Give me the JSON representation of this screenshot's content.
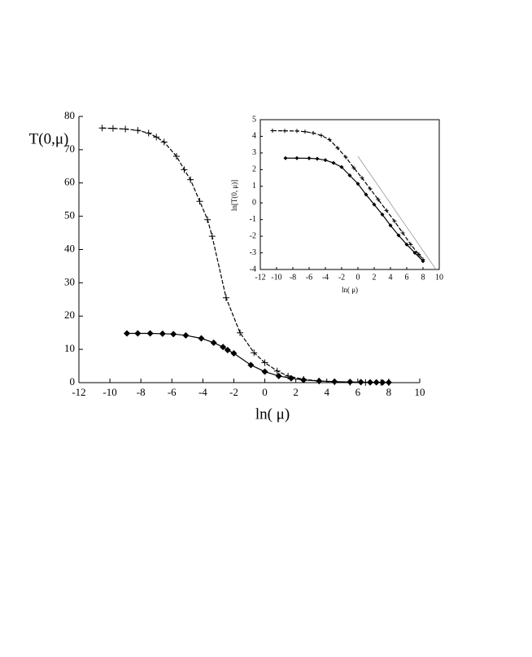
{
  "chart_data": [
    {
      "type": "line",
      "xlabel": "ln( μ)",
      "ylabel": "T(0,μ)",
      "frame": false,
      "xlim": [
        -12,
        10
      ],
      "xticks": [
        -12,
        -10,
        -8,
        -6,
        -4,
        -2,
        0,
        2,
        4,
        6,
        8,
        10
      ],
      "ylim": [
        0,
        80
      ],
      "yticks": [
        0,
        10,
        20,
        30,
        40,
        50,
        60,
        70,
        80
      ],
      "series": [
        {
          "color": "#000000",
          "marker": "plus",
          "dash": true,
          "x": [
            -10.5,
            -9.8,
            -9,
            -8.2,
            -7.5,
            -7,
            -6.5,
            -5.7,
            -5.2,
            -4.8,
            -4.2,
            -3.7,
            -3.4,
            -2.5,
            -1.6,
            -0.7,
            0,
            0.8,
            1.5,
            2.5,
            3.5,
            4.5,
            5.5,
            6.5,
            7.5,
            8
          ],
          "values": [
            76.5,
            76.4,
            76.2,
            75.8,
            75.0,
            73.8,
            72.3,
            68,
            64,
            61,
            54.5,
            49,
            44,
            25.5,
            15,
            9,
            6,
            3.5,
            2,
            1,
            0.5,
            0.2,
            0.1,
            0.05,
            0.02,
            0.01
          ]
        },
        {
          "color": "#000000",
          "marker": "diamond",
          "dash": false,
          "x": [
            -8.9,
            -8.2,
            -7.4,
            -6.6,
            -5.9,
            -5.1,
            -4.1,
            -3.3,
            -2.7,
            -2.4,
            -2,
            -0.9,
            0,
            0.9,
            1.7,
            2.5,
            3.5,
            4.5,
            5.5,
            6.2,
            6.8,
            7.2,
            7.6,
            8
          ],
          "values": [
            14.8,
            14.8,
            14.8,
            14.7,
            14.6,
            14.2,
            13.3,
            12,
            10.7,
            9.8,
            8.8,
            5.3,
            3.3,
            2,
            1.3,
            0.8,
            0.5,
            0.3,
            0.2,
            0.15,
            0.1,
            0.08,
            0.06,
            0.05
          ]
        }
      ]
    },
    {
      "type": "line",
      "xlabel": "ln( μ)",
      "ylabel": "ln[T(0, μ)]",
      "frame": true,
      "xlim": [
        -12,
        10
      ],
      "xticks": [
        -12,
        -10,
        -8,
        -6,
        -4,
        -2,
        0,
        2,
        4,
        6,
        8,
        10
      ],
      "ylim": [
        -4,
        5
      ],
      "yticks": [
        -4,
        -3,
        -2,
        -1,
        0,
        1,
        2,
        3,
        4,
        5
      ],
      "series": [
        {
          "color": "#000000",
          "marker": "plus",
          "dash": true,
          "x": [
            -10.5,
            -9,
            -7.5,
            -6.5,
            -5.5,
            -4.5,
            -3.5,
            -2.5,
            -1.5,
            -0.5,
            0.5,
            1.5,
            2.5,
            3.5,
            4.5,
            5.5,
            6.5,
            7.5,
            8
          ],
          "values": [
            4.34,
            4.33,
            4.32,
            4.28,
            4.2,
            4.05,
            3.8,
            3.3,
            2.75,
            2.1,
            1.5,
            0.85,
            0.2,
            -0.45,
            -1.1,
            -1.8,
            -2.5,
            -3.1,
            -3.4
          ]
        },
        {
          "color": "#000000",
          "marker": "diamond",
          "dash": false,
          "x": [
            -8.9,
            -7.5,
            -6,
            -5,
            -4,
            -3,
            -2,
            -1,
            0,
            1,
            2,
            3,
            4,
            5,
            6,
            7,
            8
          ],
          "values": [
            2.69,
            2.69,
            2.68,
            2.65,
            2.57,
            2.4,
            2.15,
            1.65,
            1.15,
            0.5,
            -0.1,
            -0.7,
            -1.35,
            -1.95,
            -2.5,
            -3.0,
            -3.5
          ]
        },
        {
          "color": "#999999",
          "marker": "none",
          "dash": false,
          "x": [
            0,
            9.6
          ],
          "values": [
            2.8,
            -4
          ]
        }
      ]
    }
  ]
}
